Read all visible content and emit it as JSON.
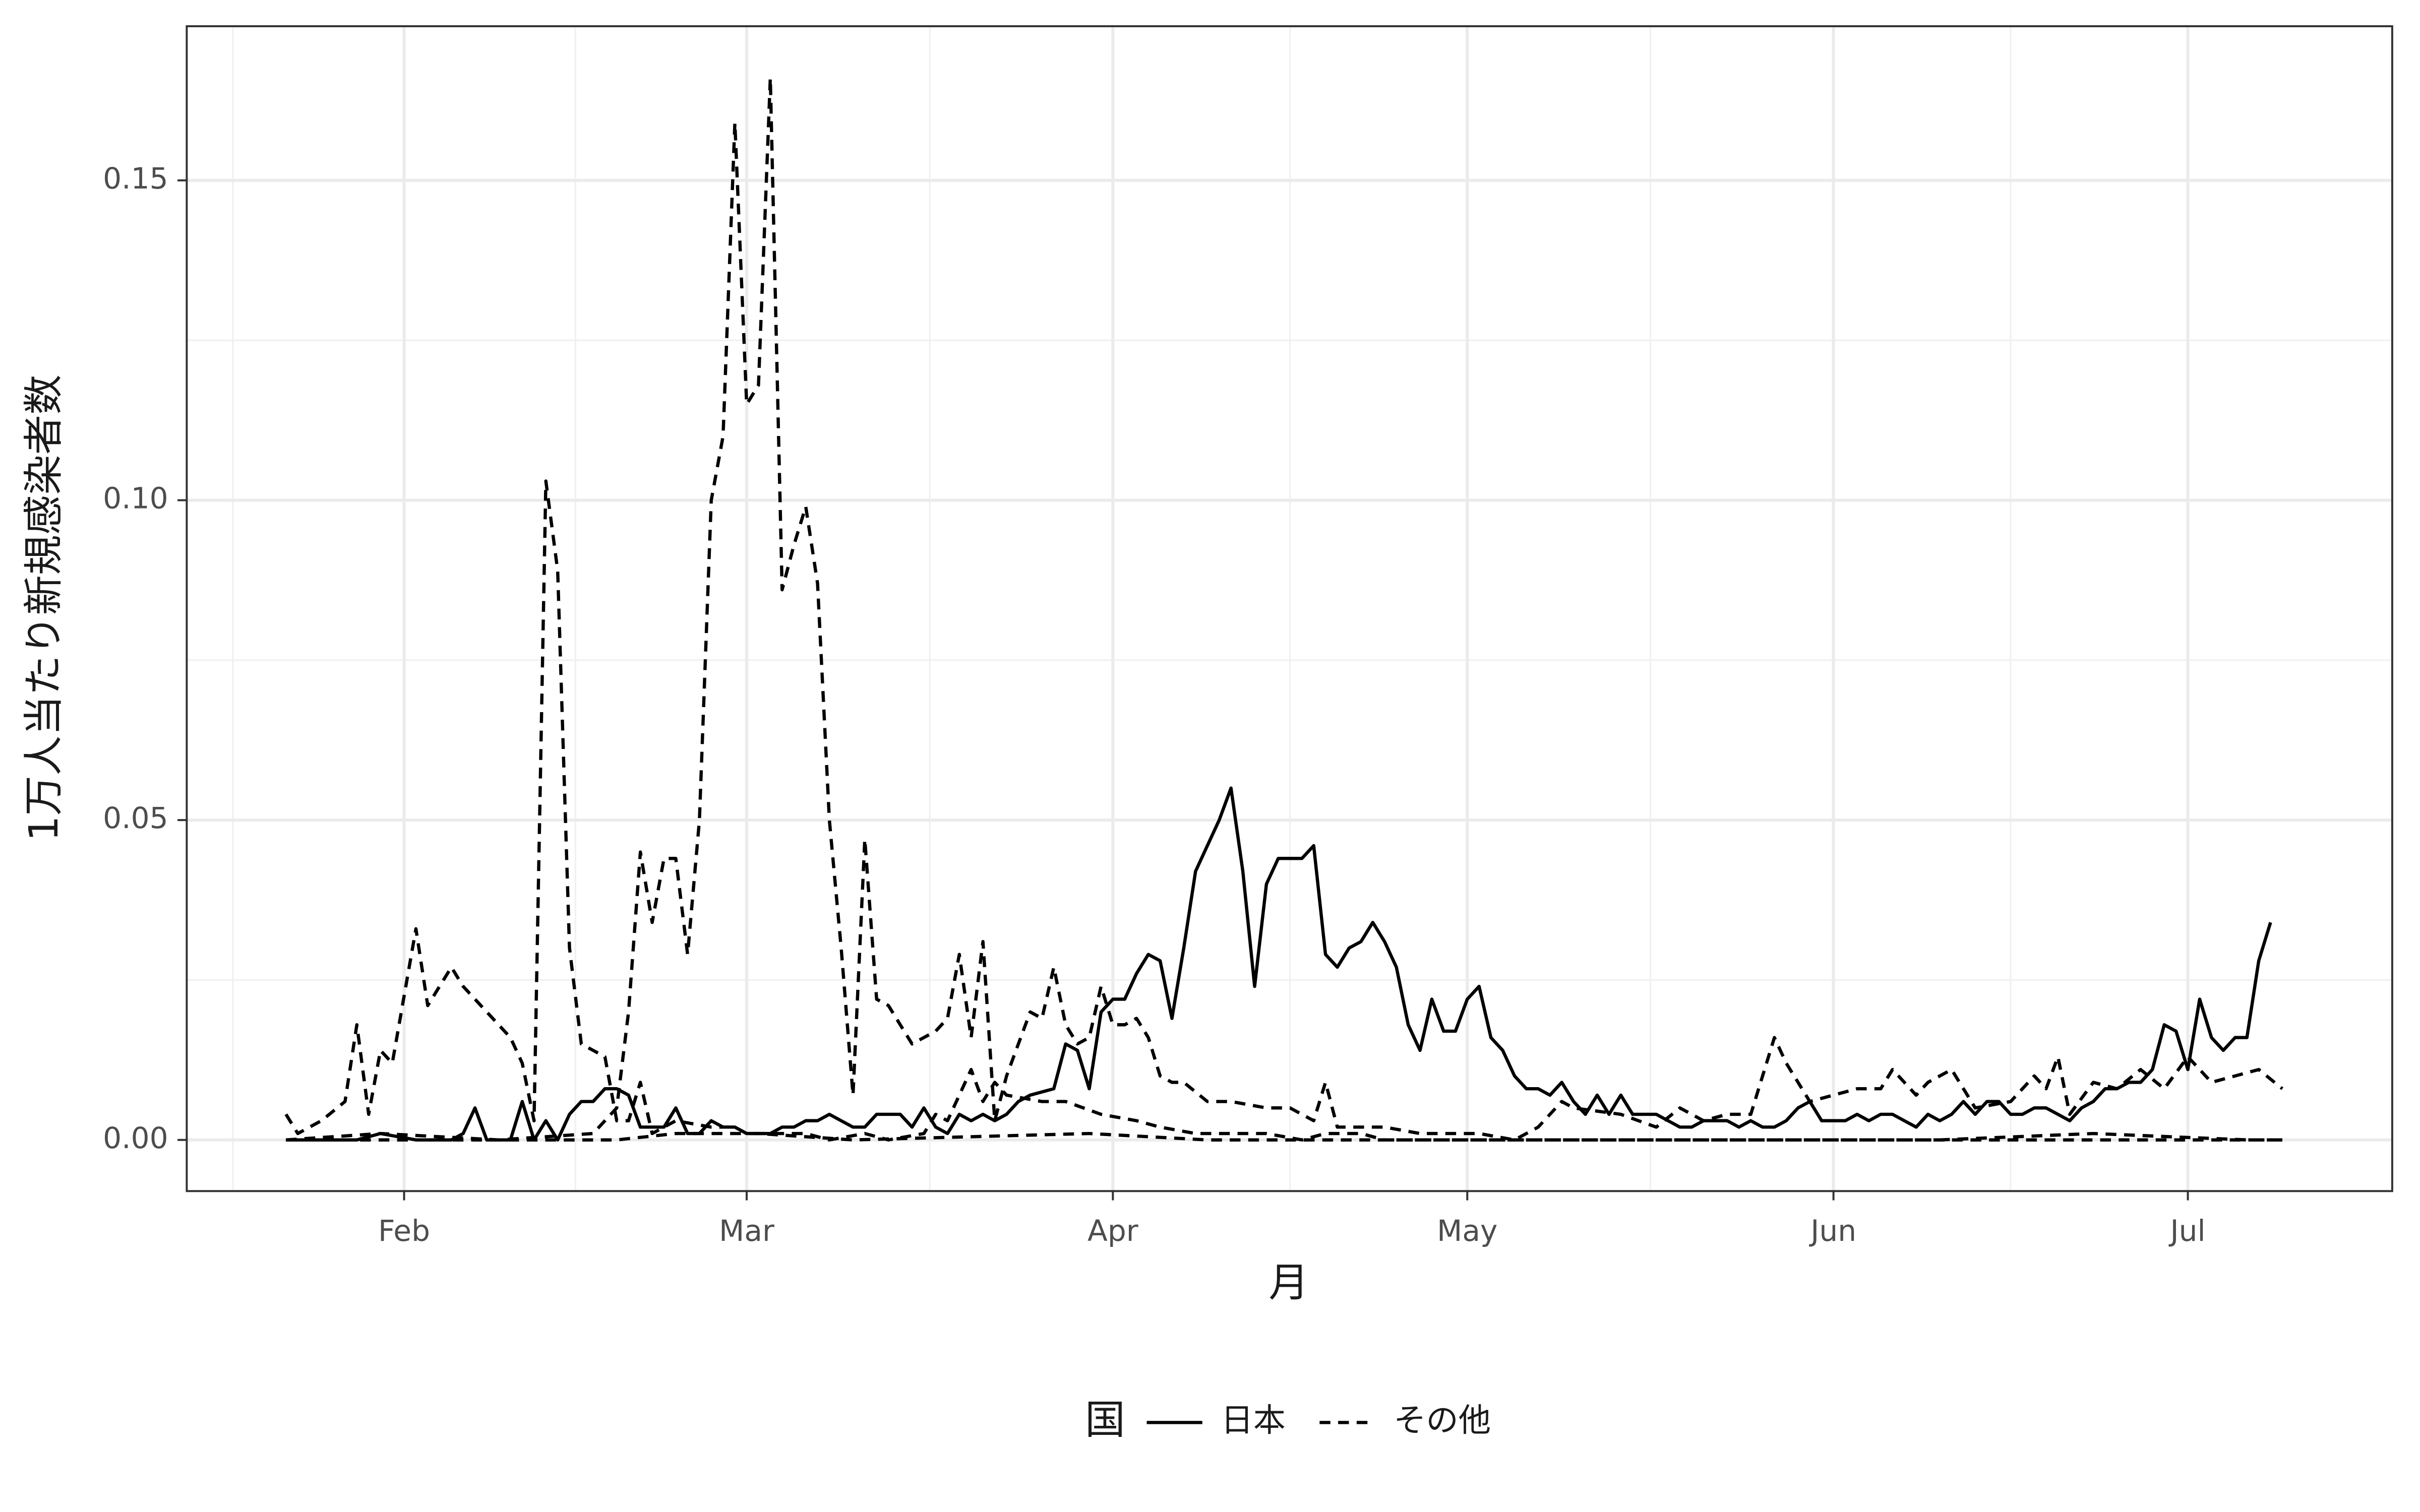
{
  "chart_data": {
    "type": "line",
    "xlabel": "月",
    "ylabel": "1万人当たり新規感染者数",
    "legend_title": "国",
    "legend": "bottom",
    "grid": true,
    "xlim": [
      13.6,
      200.3
    ],
    "ylim": [
      -0.008,
      0.1741
    ],
    "xticks": [
      {
        "value": 32,
        "label": "Feb"
      },
      {
        "value": 61,
        "label": "Mar"
      },
      {
        "value": 92,
        "label": "Apr"
      },
      {
        "value": 122,
        "label": "May"
      },
      {
        "value": 153,
        "label": "Jun"
      },
      {
        "value": 183,
        "label": "Jul"
      }
    ],
    "x_minor_ticks": [
      17.5,
      46.5,
      76.5,
      107,
      137.5,
      168
    ],
    "yticks": [
      {
        "value": 0,
        "label": "0.00"
      },
      {
        "value": 0.05,
        "label": "0.05"
      },
      {
        "value": 0.1,
        "label": "0.10"
      },
      {
        "value": 0.15,
        "label": "0.15"
      }
    ],
    "y_minor_ticks": [
      0.025,
      0.075,
      0.125
    ],
    "series": [
      {
        "name": "日本",
        "color": "#000000",
        "linetype": "solid",
        "lines": [
          {
            "x": [
              22,
              25,
              28,
              30,
              33,
              36,
              37,
              38,
              39,
              41,
              42,
              43,
              44,
              45,
              46,
              47,
              48,
              49,
              50,
              51,
              52,
              53,
              54,
              55,
              56,
              57,
              58,
              59,
              60,
              61,
              63,
              64,
              65,
              66,
              67,
              68,
              69,
              70,
              71,
              72,
              73,
              74,
              75,
              76,
              77,
              78,
              79,
              80,
              81,
              82,
              83,
              84,
              85,
              87,
              88,
              89,
              90,
              91,
              92,
              93,
              94,
              95,
              96,
              97,
              98,
              99,
              100,
              101,
              102,
              103,
              104,
              105,
              106,
              107,
              108,
              109,
              110,
              111,
              112,
              113,
              114,
              115,
              116,
              117,
              118,
              119,
              120,
              121,
              122,
              123,
              124,
              125,
              126,
              127,
              128,
              129,
              130,
              131,
              132,
              133,
              134,
              135,
              136,
              137,
              138,
              139,
              140,
              141,
              142,
              143,
              144,
              145,
              146,
              147,
              148,
              149,
              150,
              151,
              152,
              153,
              154,
              155,
              156,
              157,
              158,
              159,
              160,
              161,
              162,
              163,
              164,
              165,
              166,
              167,
              168,
              169,
              170,
              171,
              172,
              173,
              174,
              175,
              176,
              177,
              178,
              179,
              180,
              181,
              182,
              183,
              184,
              185,
              186,
              187,
              188,
              189,
              190
            ],
            "values": [
              0,
              0,
              0,
              0.001,
              0,
              0,
              0.001,
              0.005,
              0,
              0,
              0.006,
              0,
              0.003,
              0,
              0.004,
              0.006,
              0.006,
              0.008,
              0.008,
              0.007,
              0.002,
              0.002,
              0.002,
              0.005,
              0.001,
              0.001,
              0.003,
              0.002,
              0.002,
              0.001,
              0.001,
              0.002,
              0.002,
              0.003,
              0.003,
              0.004,
              0.003,
              0.002,
              0.002,
              0.004,
              0.004,
              0.004,
              0.002,
              0.005,
              0.002,
              0.001,
              0.004,
              0.003,
              0.004,
              0.003,
              0.004,
              0.006,
              0.007,
              0.008,
              0.015,
              0.014,
              0.008,
              0.02,
              0.022,
              0.022,
              0.026,
              0.029,
              0.028,
              0.019,
              0.03,
              0.042,
              0.046,
              0.05,
              0.055,
              0.042,
              0.024,
              0.04,
              0.044,
              0.044,
              0.044,
              0.046,
              0.029,
              0.027,
              0.03,
              0.031,
              0.034,
              0.031,
              0.027,
              0.018,
              0.014,
              0.022,
              0.017,
              0.017,
              0.022,
              0.024,
              0.016,
              0.014,
              0.01,
              0.008,
              0.008,
              0.007,
              0.009,
              0.006,
              0.004,
              0.007,
              0.004,
              0.007,
              0.004,
              0.004,
              0.004,
              0.003,
              0.002,
              0.002,
              0.003,
              0.003,
              0.003,
              0.002,
              0.003,
              0.002,
              0.002,
              0.003,
              0.005,
              0.006,
              0.003,
              0.003,
              0.003,
              0.004,
              0.003,
              0.004,
              0.004,
              0.003,
              0.002,
              0.004,
              0.003,
              0.004,
              0.006,
              0.004,
              0.006,
              0.006,
              0.004,
              0.004,
              0.005,
              0.005,
              0.004,
              0.003,
              0.005,
              0.006,
              0.008,
              0.008,
              0.009,
              0.009,
              0.011,
              0.018,
              0.017,
              0.011,
              0.022,
              0.016,
              0.014,
              0.016,
              0.016,
              0.028,
              0.034
            ]
          }
        ]
      },
      {
        "name": "その他",
        "color": "#000000",
        "linetype": "dashed",
        "lines": [
          {
            "x": [
              22,
              30,
              40,
              48,
              50,
              51,
              52,
              53,
              54,
              55,
              56,
              57,
              58,
              59,
              60,
              61,
              62,
              63,
              64,
              65,
              66,
              67,
              68,
              69,
              70,
              71,
              72,
              73,
              75,
              77,
              78,
              79,
              80,
              81,
              82,
              83,
              84,
              85,
              86,
              87,
              88,
              89,
              90,
              91,
              92,
              93,
              94,
              95,
              96,
              97,
              98,
              100,
              102,
              105,
              107,
              109,
              110,
              111,
              113,
              115,
              118,
              121,
              123,
              126,
              128,
              130,
              131,
              135,
              138,
              140,
              142,
              144,
              146,
              148,
              149,
              151,
              153,
              155,
              157,
              158,
              160,
              161,
              163,
              165,
              168,
              170,
              171,
              172,
              173,
              175,
              177,
              179,
              181,
              183,
              185,
              187,
              189,
              191
            ],
            "values": [
              0,
              0.001,
              0,
              0.001,
              0.005,
              0.02,
              0.045,
              0.034,
              0.044,
              0.044,
              0.029,
              0.05,
              0.1,
              0.11,
              0.159,
              0.115,
              0.118,
              0.166,
              0.086,
              0.093,
              0.099,
              0.087,
              0.05,
              0.03,
              0.007,
              0.047,
              0.022,
              0.021,
              0.015,
              0.017,
              0.019,
              0.029,
              0.016,
              0.031,
              0.003,
              0.01,
              0.015,
              0.02,
              0.019,
              0.027,
              0.018,
              0.015,
              0.016,
              0.024,
              0.018,
              0.018,
              0.019,
              0.016,
              0.01,
              0.009,
              0.009,
              0.006,
              0.006,
              0.005,
              0.005,
              0.003,
              0.009,
              0.002,
              0.002,
              0.002,
              0.001,
              0.001,
              0.001,
              0,
              0.002,
              0.006,
              0.005,
              0.004,
              0.002,
              0.005,
              0.003,
              0.004,
              0.004,
              0.016,
              0.012,
              0.006,
              0.007,
              0.008,
              0.008,
              0.011,
              0.007,
              0.009,
              0.011,
              0.005,
              0.006,
              0.01,
              0.008,
              0.013,
              0.004,
              0.009,
              0.008,
              0.011,
              0.008,
              0.013,
              0.009,
              0.01,
              0.011,
              0.008
            ]
          },
          {
            "x": [
              22,
              23,
              25,
              27,
              28,
              29,
              30,
              31,
              33,
              34,
              36,
              37,
              38,
              40,
              41,
              42,
              43,
              44,
              45,
              46,
              47,
              48,
              49,
              50,
              51,
              52,
              53,
              55,
              58,
              60,
              61,
              63,
              66,
              68,
              71,
              73,
              76,
              77,
              78,
              80,
              81,
              82,
              83,
              86,
              88,
              91,
              94,
              96,
              99,
              102,
              105,
              108,
              110,
              113,
              115,
              118,
              123,
              136,
              149,
              162,
              175,
              188,
              191
            ],
            "values": [
              0.004,
              0.001,
              0.003,
              0.006,
              0.018,
              0.004,
              0.014,
              0.012,
              0.033,
              0.021,
              0.027,
              0.024,
              0.022,
              0.018,
              0.016,
              0.012,
              0.003,
              0.103,
              0.089,
              0.03,
              0.015,
              0.014,
              0.013,
              0.003,
              0.003,
              0.009,
              0.001,
              0.003,
              0.002,
              0.002,
              0.001,
              0.001,
              0.001,
              0,
              0.001,
              0,
              0.001,
              0.004,
              0.003,
              0.011,
              0.006,
              0.009,
              0.007,
              0.006,
              0.006,
              0.004,
              0.003,
              0.002,
              0.001,
              0.001,
              0.001,
              0,
              0.001,
              0.001,
              0,
              0,
              0,
              0,
              0,
              0,
              0.001,
              0,
              0
            ]
          },
          {
            "x": [
              22,
              50,
              55,
              62,
              70,
              90,
              100,
              130,
              191
            ],
            "values": [
              0,
              0,
              0.001,
              0.001,
              0,
              0.001,
              0,
              0,
              0
            ]
          }
        ]
      }
    ]
  }
}
